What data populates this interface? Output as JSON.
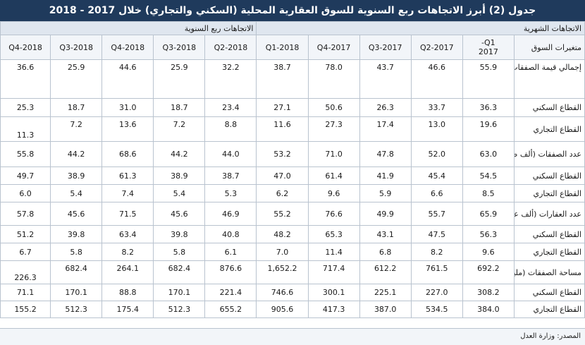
{
  "title": "جدول (2) أبرز الاتجاهات ربع السنوية للسوق العقارية المحلية (السكني والتجاري) خلال 2017 - 2018",
  "header_groups": {
    "monthly": "الاتجاهات الشهرية",
    "quarterly": "الاتجاهات ربع السنوية"
  },
  "columns": {
    "label": "متغيرات السوق",
    "periods": [
      "Q1-\n2017",
      "2017-Q2",
      "2017-Q3",
      "2017-Q4",
      "2018-Q1",
      "2018-Q2",
      "2018-Q3",
      "2018-Q4",
      "2018-Q3",
      "2018-Q4"
    ]
  },
  "rows": [
    {
      "label": "إجمالي قيمة الصفقات (مليار ريال)",
      "values": [
        "55.9",
        "46.6",
        "43.7",
        "78.0",
        "38.7",
        "32.2",
        "25.9",
        "44.6",
        "25.9",
        "36.6"
      ]
    },
    {
      "label": "القطاع السكني",
      "values": [
        "36.3",
        "33.7",
        "26.3",
        "50.6",
        "27.1",
        "23.4",
        "18.7",
        "31.0",
        "18.7",
        "25.3"
      ]
    },
    {
      "label": "القطاع التجاري",
      "values": [
        "19.6",
        "13.0",
        "17.4",
        "27.3",
        "11.6",
        "8.8",
        "7.2",
        "13.6",
        "7.2",
        "11.3"
      ]
    },
    {
      "label": "عدد الصفقات (ألف صفقة)",
      "values": [
        "63.0",
        "52.0",
        "47.8",
        "71.0",
        "53.2",
        "44.0",
        "44.2",
        "68.6",
        "44.2",
        "55.8"
      ]
    },
    {
      "label": "القطاع السكني",
      "values": [
        "54.5",
        "45.4",
        "41.9",
        "61.4",
        "47.0",
        "38.7",
        "38.9",
        "61.3",
        "38.9",
        "49.7"
      ]
    },
    {
      "label": "القطاع التجاري",
      "values": [
        "8.5",
        "6.6",
        "5.9",
        "9.6",
        "6.2",
        "5.3",
        "5.4",
        "7.4",
        "5.4",
        "6.0"
      ]
    },
    {
      "label": "عدد العقارات (ألف عقار)",
      "values": [
        "65.9",
        "55.7",
        "49.9",
        "76.6",
        "55.2",
        "46.9",
        "45.6",
        "71.5",
        "45.6",
        "57.8"
      ]
    },
    {
      "label": "القطاع السكني",
      "values": [
        "56.3",
        "47.5",
        "43.1",
        "65.3",
        "48.2",
        "40.8",
        "39.8",
        "63.4",
        "39.8",
        "51.2"
      ]
    },
    {
      "label": "القطاع التجاري",
      "values": [
        "9.6",
        "8.2",
        "6.8",
        "11.4",
        "7.0",
        "6.1",
        "5.8",
        "8.2",
        "5.8",
        "6.7"
      ]
    },
    {
      "label": "مساحة الصفقات (مليون متر مربع)",
      "values": [
        "692.2",
        "761.5",
        "612.2",
        "717.4",
        "1,652.2",
        "876.6",
        "682.4",
        "264.1",
        "682.4",
        "226.3"
      ]
    },
    {
      "label": "القطاع السكني",
      "values": [
        "308.2",
        "227.0",
        "225.1",
        "300.1",
        "746.6",
        "221.4",
        "170.1",
        "88.8",
        "170.1",
        "71.1"
      ]
    },
    {
      "label": "القطاع التجاري",
      "values": [
        "384.0",
        "534.5",
        "387.0",
        "417.3",
        "905.6",
        "655.2",
        "512.3",
        "175.4",
        "512.3",
        "155.2"
      ]
    }
  ],
  "source": "المصدر: وزارة العدل"
}
